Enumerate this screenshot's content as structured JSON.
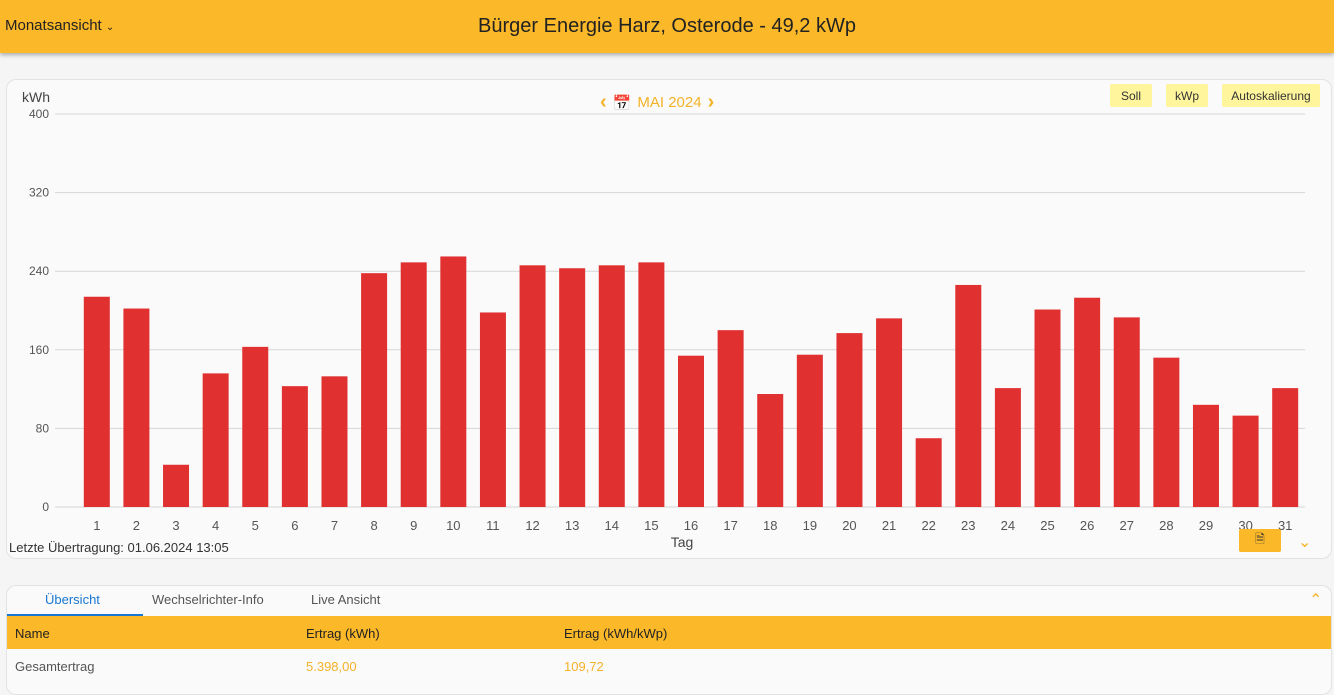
{
  "header": {
    "view_label": "Monatsansicht",
    "title": "Bürger Energie Harz, Osterode - 49,2 kWp"
  },
  "chart_nav": {
    "period": "MAI 2024",
    "prev_icon": "chevron-left-icon",
    "next_icon": "chevron-right-icon",
    "calendar_icon": "calendar-icon"
  },
  "buttons": {
    "soll": "Soll",
    "kwp": "kWp",
    "autoscale": "Autoskalierung"
  },
  "last_transfer": "Letzte Übertragung: 01.06.2024 13:05",
  "colors": {
    "accent": "#fbb829",
    "bar": "#e03030",
    "button": "#fff59d"
  },
  "chart_data": {
    "type": "bar",
    "title": "",
    "xlabel": "Tag",
    "ylabel": "kWh",
    "ylim": [
      0,
      400
    ],
    "yticks": [
      0,
      80,
      160,
      240,
      320,
      400
    ],
    "grid": true,
    "categories": [
      "1",
      "2",
      "3",
      "4",
      "5",
      "6",
      "7",
      "8",
      "9",
      "10",
      "11",
      "12",
      "13",
      "14",
      "15",
      "16",
      "17",
      "18",
      "19",
      "20",
      "21",
      "22",
      "23",
      "24",
      "25",
      "26",
      "27",
      "28",
      "29",
      "30",
      "31"
    ],
    "values": [
      214,
      202,
      43,
      136,
      163,
      123,
      133,
      238,
      249,
      255,
      198,
      246,
      243,
      246,
      249,
      154,
      180,
      115,
      155,
      177,
      192,
      70,
      226,
      121,
      201,
      213,
      193,
      152,
      104,
      93,
      121
    ]
  },
  "tabs": [
    {
      "label": "Übersicht"
    },
    {
      "label": "Wechselrichter-Info"
    },
    {
      "label": "Live Ansicht"
    }
  ],
  "table": {
    "headers": [
      "Name",
      "Ertrag (kWh)",
      "Ertrag (kWh/kWp)"
    ],
    "rows": [
      [
        "Gesamtertrag",
        "5.398,00",
        "109,72"
      ]
    ]
  }
}
